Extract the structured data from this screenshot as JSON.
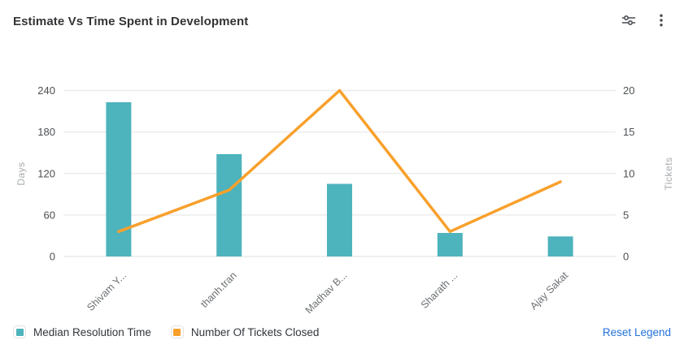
{
  "header": {
    "title": "Estimate Vs Time Spent in Development"
  },
  "actions": {
    "filter_icon": "sliders-filter",
    "menu_icon": "kebab-menu"
  },
  "chart_data": {
    "type": "combo-bar-line",
    "title": "Estimate Vs Time Spent in Development",
    "categories": [
      "Shivam Y...",
      "thanh.tran",
      "Madhav B...",
      "Sharath ...",
      "Ajay Sakat"
    ],
    "series": [
      {
        "name": "Median Resolution Time",
        "type": "bar",
        "axis": "left",
        "color": "#4DB3BC",
        "values": [
          223,
          148,
          105,
          34,
          29
        ]
      },
      {
        "name": "Number Of Tickets Closed",
        "type": "line",
        "axis": "right",
        "color": "#F8A02C",
        "values": [
          3,
          8,
          20,
          3,
          9
        ]
      }
    ],
    "axes": {
      "left": {
        "label": "Days",
        "min": 0,
        "max": 240,
        "ticks": [
          0,
          60,
          120,
          180,
          240
        ]
      },
      "right": {
        "label": "Tickets",
        "min": 0,
        "max": 20,
        "ticks": [
          0,
          5,
          10,
          15,
          20
        ]
      }
    },
    "grid": true,
    "legend_position": "bottom-left",
    "colors": {
      "gridline": "#ececec",
      "tick_text": "#4d4f52",
      "axis_name_text": "#a8abae",
      "category_text": "#6d7073",
      "link_blue": "#2372db"
    }
  },
  "legend": {
    "reset_label": "Reset Legend"
  }
}
